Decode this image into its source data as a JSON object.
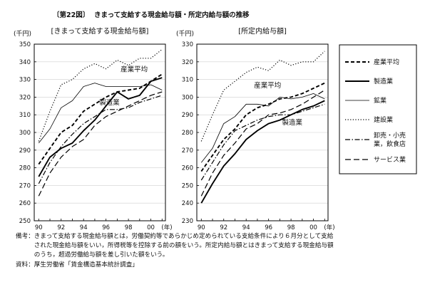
{
  "figure": {
    "label": "〔第22図〕",
    "title": "きまって支給する現金給与額・所定内給与額の推移"
  },
  "legend_keys": [
    "avg",
    "mfg",
    "min",
    "con",
    "whl",
    "svc"
  ],
  "series_styles": {
    "avg": {
      "color": "#000000",
      "dash": "5,3"
    },
    "mfg": {
      "color": "#000000",
      "dash": ""
    },
    "min": {
      "color": "#000000",
      "dash": ""
    },
    "con": {
      "color": "#000000",
      "dash": "1.2,2.4"
    },
    "whl": {
      "color": "#000000",
      "dash": "7,2.5,1.5,2.5"
    },
    "svc": {
      "color": "#000000",
      "dash": "8,4"
    }
  },
  "legend": {
    "avg": "産業平均",
    "mfg": "製造業",
    "min": "鉱業",
    "con": "建設業",
    "whl_line1": "卸売・小売",
    "whl_line2": "業，飲食店",
    "svc": "サービス業"
  },
  "chart_data": [
    {
      "type": "line",
      "title": "[きまって支給する現金給与額]",
      "ylabel": "(千円)",
      "xlabel": "(年)",
      "x": [
        1990,
        1991,
        1992,
        1993,
        1994,
        1995,
        1996,
        1997,
        1998,
        1999,
        2000,
        2001
      ],
      "x_ticks": [
        {
          "x": 1990,
          "label": "90"
        },
        {
          "x": 1992,
          "label": "92"
        },
        {
          "x": 1994,
          "label": "94"
        },
        {
          "x": 1996,
          "label": "96"
        },
        {
          "x": 1998,
          "label": "98"
        },
        {
          "x": 2000,
          "label": "00"
        }
      ],
      "y_ticks": [
        250,
        260,
        270,
        280,
        290,
        300,
        310,
        320,
        330,
        340,
        350
      ],
      "ylim": [
        250,
        350
      ],
      "xlim": [
        1989.6,
        2001.3
      ],
      "annotations": [
        {
          "text": "産業平均",
          "x": 1997.3,
          "y": 334.5
        },
        {
          "text": "製造業",
          "x": 1995.4,
          "y": 315.8
        }
      ],
      "series": [
        {
          "key": "avg",
          "values": [
            282,
            291,
            300,
            304,
            312,
            316,
            320,
            323,
            324,
            325,
            329,
            333
          ]
        },
        {
          "key": "mfg",
          "values": [
            275,
            286,
            291,
            294,
            301,
            307,
            315,
            323,
            319,
            321,
            329,
            331
          ]
        },
        {
          "key": "min",
          "values": [
            294,
            302,
            314,
            318,
            326,
            328,
            326,
            326,
            326,
            326,
            327,
            324
          ]
        },
        {
          "key": "con",
          "values": [
            295,
            312,
            327,
            330,
            336,
            339,
            336,
            341,
            338,
            342,
            342,
            347
          ]
        },
        {
          "key": "whl",
          "values": [
            271,
            283,
            292,
            299,
            305,
            309,
            313,
            313,
            314,
            317,
            319,
            321
          ]
        },
        {
          "key": "svc",
          "values": [
            264,
            277,
            286,
            292,
            296,
            304,
            309,
            312,
            315,
            318,
            321,
            323
          ]
        }
      ]
    },
    {
      "type": "line",
      "title": "[所定内給与額]",
      "ylabel": "(千円)",
      "xlabel": "(年)",
      "x": [
        1990,
        1991,
        1992,
        1993,
        1994,
        1995,
        1996,
        1997,
        1998,
        1999,
        2000,
        2001
      ],
      "x_ticks": [
        {
          "x": 1990,
          "label": "90"
        },
        {
          "x": 1992,
          "label": "92"
        },
        {
          "x": 1994,
          "label": "94"
        },
        {
          "x": 1996,
          "label": "96"
        },
        {
          "x": 1998,
          "label": "98"
        },
        {
          "x": 2000,
          "label": "00"
        }
      ],
      "y_ticks": [
        230,
        240,
        250,
        260,
        270,
        280,
        290,
        300,
        310,
        320,
        330
      ],
      "ylim": [
        230,
        330
      ],
      "xlim": [
        1989.6,
        2001.3
      ],
      "annotations": [
        {
          "text": "産業平均",
          "x": 1994.7,
          "y": 305.5
        },
        {
          "text": "製造業",
          "x": 1997.2,
          "y": 284.5
        }
      ],
      "series": [
        {
          "key": "avg",
          "values": [
            258,
            267,
            276,
            282,
            290,
            294,
            296,
            299,
            300,
            302,
            305,
            308
          ]
        },
        {
          "key": "mfg",
          "values": [
            240,
            251,
            261,
            268,
            276,
            281,
            285,
            287,
            290,
            293,
            295,
            298
          ]
        },
        {
          "key": "min",
          "values": [
            263,
            271,
            285,
            289,
            296,
            296,
            295,
            300,
            299,
            300,
            302,
            299
          ]
        },
        {
          "key": "con",
          "values": [
            275,
            290,
            304,
            309,
            314,
            317,
            315,
            321,
            318,
            320,
            320,
            326
          ]
        },
        {
          "key": "whl",
          "values": [
            253,
            263,
            273,
            281,
            284,
            287,
            289,
            290,
            290,
            292,
            294,
            296
          ]
        },
        {
          "key": "svc",
          "values": [
            244,
            257,
            267,
            274,
            282,
            285,
            290,
            291,
            293,
            296,
            300,
            304
          ]
        }
      ]
    }
  ],
  "notes": {
    "label": "備考：",
    "line1": "きまって支給する現金給与額とは，労働契約等であらかじめ定められている支給条件により６月分として支給",
    "line2": "された現金給与額をいい，所得税等を控除する前の額をいう。所定内給与額とはきまって支給する現金給与額",
    "line3": "のうち，超過労働給与額を差し引いた額をいう。",
    "source_label": "資料：",
    "source": "厚生労働省「賃金構造基本統計調査」"
  }
}
